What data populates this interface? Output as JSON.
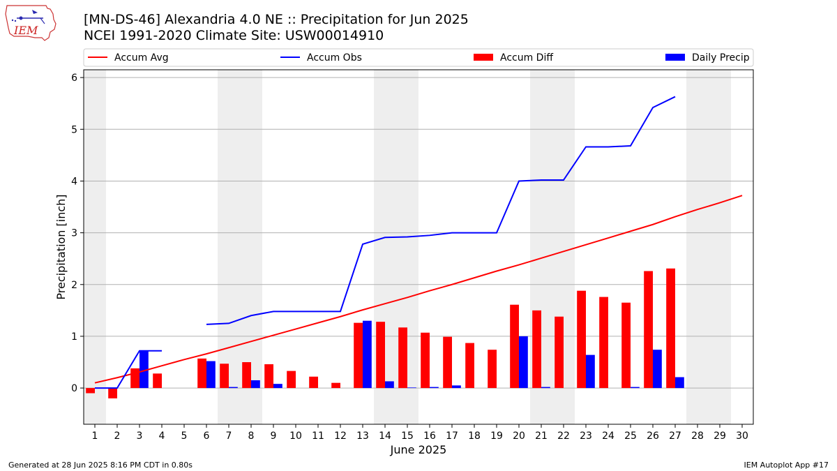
{
  "header": {
    "logo_text": "IEM",
    "title": "[MN-DS-46] Alexandria 4.0 NE :: Precipitation for Jun 2025",
    "subtitle": "NCEI 1991-2020 Climate Site: USW00014910"
  },
  "footer": {
    "generated": "Generated at 28 Jun 2025 8:16 PM CDT in 0.80s",
    "app": "IEM Autoplot App #17"
  },
  "colors": {
    "avg": "#ff0000",
    "obs": "#0000ff",
    "diff": "#ff0000",
    "daily": "#0000ff",
    "weekend_band": "#eeeeee",
    "grid": "#b0b0b0"
  },
  "chart_data": {
    "type": "bar",
    "xlabel": "June 2025",
    "ylabel": "Precipitation [inch]",
    "xlim": [
      0.5,
      30.5
    ],
    "ylim": [
      -0.7,
      6.15
    ],
    "x_ticks": [
      1,
      2,
      3,
      4,
      5,
      6,
      7,
      8,
      9,
      10,
      11,
      12,
      13,
      14,
      15,
      16,
      17,
      18,
      19,
      20,
      21,
      22,
      23,
      24,
      25,
      26,
      27,
      28,
      29,
      30
    ],
    "y_ticks": [
      0,
      1,
      2,
      3,
      4,
      5,
      6
    ],
    "grid": "horizontal",
    "legend_placement": "top",
    "shaded_day_ranges": [
      [
        0.5,
        1.5
      ],
      [
        6.5,
        8.5
      ],
      [
        13.5,
        15.5
      ],
      [
        20.5,
        22.5
      ],
      [
        27.5,
        29.5
      ]
    ],
    "series": [
      {
        "name": "Accum Avg",
        "kind": "line",
        "x": [
          1,
          2,
          3,
          4,
          5,
          6,
          7,
          8,
          9,
          10,
          11,
          12,
          13,
          14,
          15,
          16,
          17,
          18,
          19,
          20,
          21,
          22,
          23,
          24,
          25,
          26,
          27,
          28,
          29,
          30
        ],
        "values": [
          0.1,
          0.2,
          0.31,
          0.43,
          0.55,
          0.66,
          0.78,
          0.9,
          1.02,
          1.14,
          1.26,
          1.38,
          1.51,
          1.63,
          1.75,
          1.88,
          2.0,
          2.13,
          2.26,
          2.38,
          2.51,
          2.64,
          2.77,
          2.9,
          3.03,
          3.16,
          3.31,
          3.45,
          3.58,
          3.72
        ]
      },
      {
        "name": "Accum Obs",
        "kind": "line",
        "segments": [
          {
            "x": [
              1,
              2,
              3,
              4
            ],
            "values": [
              0.0,
              0.0,
              0.72,
              0.72
            ]
          },
          {
            "x": [
              6,
              7,
              8,
              9,
              10,
              11,
              12,
              13,
              14,
              15,
              16,
              17,
              18,
              19,
              20,
              21,
              22,
              23,
              24,
              25,
              26,
              27
            ],
            "values": [
              1.23,
              1.25,
              1.4,
              1.48,
              1.48,
              1.48,
              1.48,
              2.78,
              2.91,
              2.92,
              2.95,
              3.0,
              3.0,
              3.0,
              4.0,
              4.02,
              4.02,
              4.66,
              4.66,
              4.68,
              5.42,
              5.63
            ]
          }
        ]
      },
      {
        "name": "Accum Diff",
        "kind": "bar",
        "x": [
          1,
          2,
          3,
          4,
          6,
          7,
          8,
          9,
          10,
          11,
          12,
          13,
          14,
          15,
          16,
          17,
          18,
          19,
          20,
          21,
          22,
          23,
          24,
          25,
          26,
          27
        ],
        "values": [
          -0.1,
          -0.2,
          0.38,
          0.28,
          0.57,
          0.47,
          0.5,
          0.46,
          0.33,
          0.22,
          0.1,
          1.26,
          1.28,
          1.17,
          1.07,
          0.99,
          0.87,
          0.74,
          1.61,
          1.5,
          1.38,
          1.88,
          1.76,
          1.65,
          2.26,
          2.31
        ]
      },
      {
        "name": "Daily Precip",
        "kind": "bar",
        "x": [
          3,
          6,
          7,
          8,
          9,
          13,
          14,
          15,
          16,
          17,
          20,
          21,
          23,
          25,
          26,
          27
        ],
        "values": [
          0.72,
          0.52,
          0.02,
          0.15,
          0.08,
          1.3,
          0.13,
          0.01,
          0.02,
          0.05,
          1.0,
          0.02,
          0.64,
          0.02,
          0.74,
          0.21
        ]
      }
    ]
  }
}
